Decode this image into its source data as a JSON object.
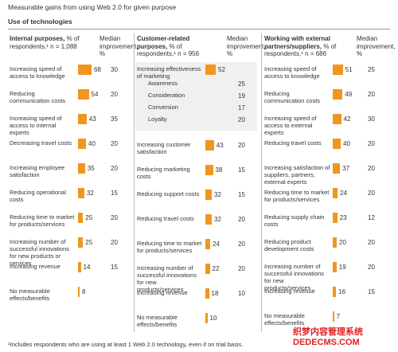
{
  "title": "Measurable gains from using Web 2.0 for given purpose",
  "subtitle": "Use of technologies",
  "footnote": "¹Includes respondents who are using at least 1 Web 2.0 technology, even if on trial basis.",
  "watermark": "织梦内容管理系统 DEDECMS.COM",
  "chart_data": [
    {
      "type": "bar",
      "title": "Internal purposes,",
      "subtitle": "% of respondents,¹ n = 1,088",
      "median_header": "Median improvement, %",
      "color": "#f0961e",
      "categories": [
        "Increasing speed of access to knowledge",
        "Reducing communication costs",
        "Increasing speed of access to internal experts",
        "Decreasing travel costs",
        "Increasing employee satisfaction",
        "Reducing operational costs",
        "Reducing time to market for products/services",
        "Increasing number of successful innovations for new products or services",
        "Increasing revenue",
        "No measurable effects/benefits"
      ],
      "values": [
        68,
        54,
        43,
        40,
        35,
        32,
        25,
        25,
        14,
        8
      ],
      "medians": [
        30,
        20,
        35,
        20,
        20,
        15,
        20,
        20,
        15,
        null
      ]
    },
    {
      "type": "bar",
      "title": "Customer-related purposes,",
      "subtitle": "% of respondents,¹ n = 956",
      "median_header": "Median improvement, %",
      "color": "#f0961e",
      "categories": [
        "Increasing effectiveness of marketing",
        "Awareness",
        "Consideration",
        "Conversion",
        "Loyalty",
        "Increasing customer satisfaction",
        "Reducing marketing costs",
        "Reducing support costs",
        "Reducing travel costs",
        "Reducing time to market for products/services",
        "Increasing number of successful innovations for new products/services",
        "Increasing revenue",
        "No measurable effects/benefits"
      ],
      "values": [
        52,
        null,
        null,
        null,
        null,
        43,
        38,
        32,
        32,
        24,
        22,
        18,
        10
      ],
      "medians": [
        null,
        25,
        19,
        17,
        20,
        20,
        15,
        15,
        20,
        20,
        20,
        10,
        null
      ]
    },
    {
      "type": "bar",
      "title": "Working with external partners/suppliers,",
      "subtitle": "% of respondents,¹ n = 686",
      "median_header": "Median improvement, %",
      "color": "#f0961e",
      "categories": [
        "Increasing speed of access to knowledge",
        "Reducing communication costs",
        "Increasing speed of access to external experts",
        "Reducing travel costs",
        "Increasing satisfaction of suppliers, partners, external experts",
        "Reducing time to market for products/services",
        "Reducing supply chain costs",
        "Reducing product development costs",
        "Increasing number of successful innovations for new products/services",
        "Increasing revenue",
        "No measurable effects/benefits"
      ],
      "values": [
        51,
        49,
        42,
        40,
        37,
        24,
        23,
        20,
        19,
        16,
        7
      ],
      "medians": [
        25,
        20,
        30,
        20,
        20,
        20,
        12,
        20,
        20,
        15,
        null
      ]
    }
  ]
}
